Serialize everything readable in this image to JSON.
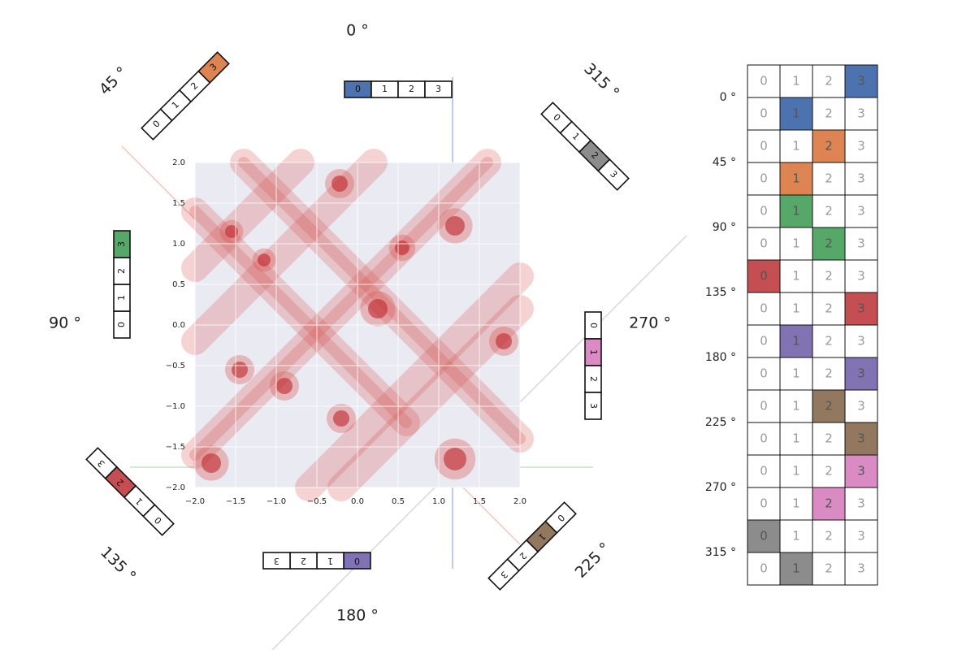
{
  "chart_data": {
    "type": "contour",
    "xlim": [
      -2,
      2
    ],
    "ylim": [
      -2,
      2
    ],
    "xticks": [
      {
        "value": -2,
        "label": "−2.0"
      },
      {
        "value": -1.5,
        "label": "−1.5"
      },
      {
        "value": -1,
        "label": "−1.0"
      },
      {
        "value": -0.5,
        "label": "−0.5"
      },
      {
        "value": 0,
        "label": "0.0"
      },
      0.5,
      {
        "value": 1,
        "label": "1.0"
      },
      1.5,
      {
        "value": 2,
        "label": "2.0"
      }
    ],
    "yticks": [
      {
        "value": -2,
        "label": "−2.0"
      },
      {
        "value": -1.5,
        "label": "−1.5"
      },
      {
        "value": -1,
        "label": "−1.0"
      },
      {
        "value": -0.5,
        "label": "−0.5"
      },
      {
        "value": 0,
        "label": "0.0"
      },
      0.5,
      {
        "value": 1,
        "label": "1.0"
      },
      1.5,
      {
        "value": 2,
        "label": "2.0"
      }
    ],
    "grid": true,
    "color": "#d9544f"
  },
  "table": {
    "columns": [
      "0",
      "1",
      "2",
      "3"
    ],
    "angles": [
      "0 °",
      "45 °",
      "90 °",
      "135 °",
      "180 °",
      "225 °",
      "270 °",
      "315 °"
    ],
    "highlights": [
      {
        "col": 3,
        "color": "#4c72b0"
      },
      {
        "col": 1,
        "color": "#4c72b0"
      },
      {
        "col": 2,
        "color": "#dd8452"
      },
      {
        "col": 1,
        "color": "#dd8452"
      },
      {
        "col": 1,
        "color": "#55a868"
      },
      {
        "col": 2,
        "color": "#55a868"
      },
      {
        "col": 0,
        "color": "#c44e52"
      },
      {
        "col": 3,
        "color": "#c44e52"
      },
      {
        "col": 1,
        "color": "#8172b3"
      },
      {
        "col": 3,
        "color": "#8172b3"
      },
      {
        "col": 2,
        "color": "#937860"
      },
      {
        "col": 3,
        "color": "#937860"
      },
      {
        "col": 3,
        "color": "#da8bc3"
      },
      {
        "col": 2,
        "color": "#da8bc3"
      },
      {
        "col": 0,
        "color": "#8c8c8c"
      },
      {
        "col": 1,
        "color": "#8c8c8c"
      }
    ]
  },
  "strips": [
    {
      "highlight": 0,
      "color": "#4c72b0"
    },
    {
      "highlight": 3,
      "color": "#dd8452"
    },
    {
      "highlight": 3,
      "color": "#55a868"
    },
    {
      "highlight": 2,
      "color": "#c44e52"
    },
    {
      "highlight": 0,
      "color": "#8172b3"
    },
    {
      "highlight": 1,
      "color": "#937860"
    },
    {
      "highlight": 1,
      "color": "#da8bc3"
    },
    {
      "highlight": 2,
      "color": "#8c8c8c"
    }
  ]
}
